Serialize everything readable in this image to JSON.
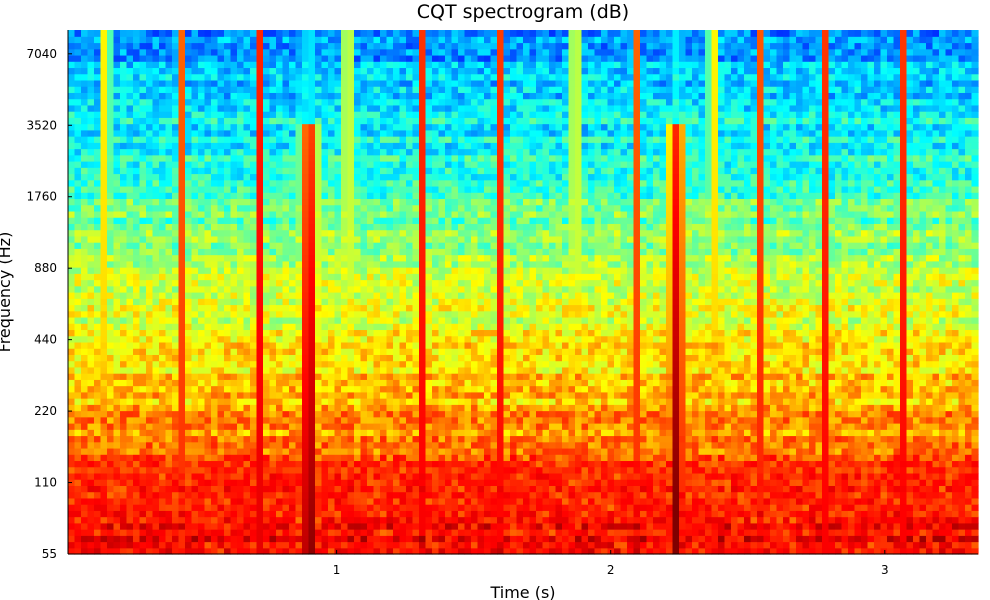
{
  "chart_data": {
    "type": "heatmap",
    "title": "CQT spectrogram (dB)",
    "xlabel": "Time (s)",
    "ylabel": "Frequency (Hz)",
    "x_range": [
      0.02,
      3.34
    ],
    "y_range_hz": [
      55,
      8870
    ],
    "y_scale": "log2",
    "colormap": "jet",
    "x_ticks": [
      {
        "value": 1,
        "label": "1"
      },
      {
        "value": 2,
        "label": "2"
      },
      {
        "value": 3,
        "label": "3"
      }
    ],
    "y_ticks": [
      {
        "value": 55,
        "label": "55"
      },
      {
        "value": 110,
        "label": "110"
      },
      {
        "value": 220,
        "label": "220"
      },
      {
        "value": 440,
        "label": "440"
      },
      {
        "value": 880,
        "label": "880"
      },
      {
        "value": 1760,
        "label": "1760"
      },
      {
        "value": 3520,
        "label": "3520"
      },
      {
        "value": 7040,
        "label": "7040"
      }
    ],
    "onset_times_s": [
      0.16,
      0.43,
      0.72,
      1.04,
      1.31,
      1.6,
      1.87,
      2.09,
      2.37,
      2.55,
      2.78,
      3.07
    ],
    "strong_onset_times_s": [
      0.9,
      2.24
    ],
    "colorbar": false,
    "grid": false
  }
}
